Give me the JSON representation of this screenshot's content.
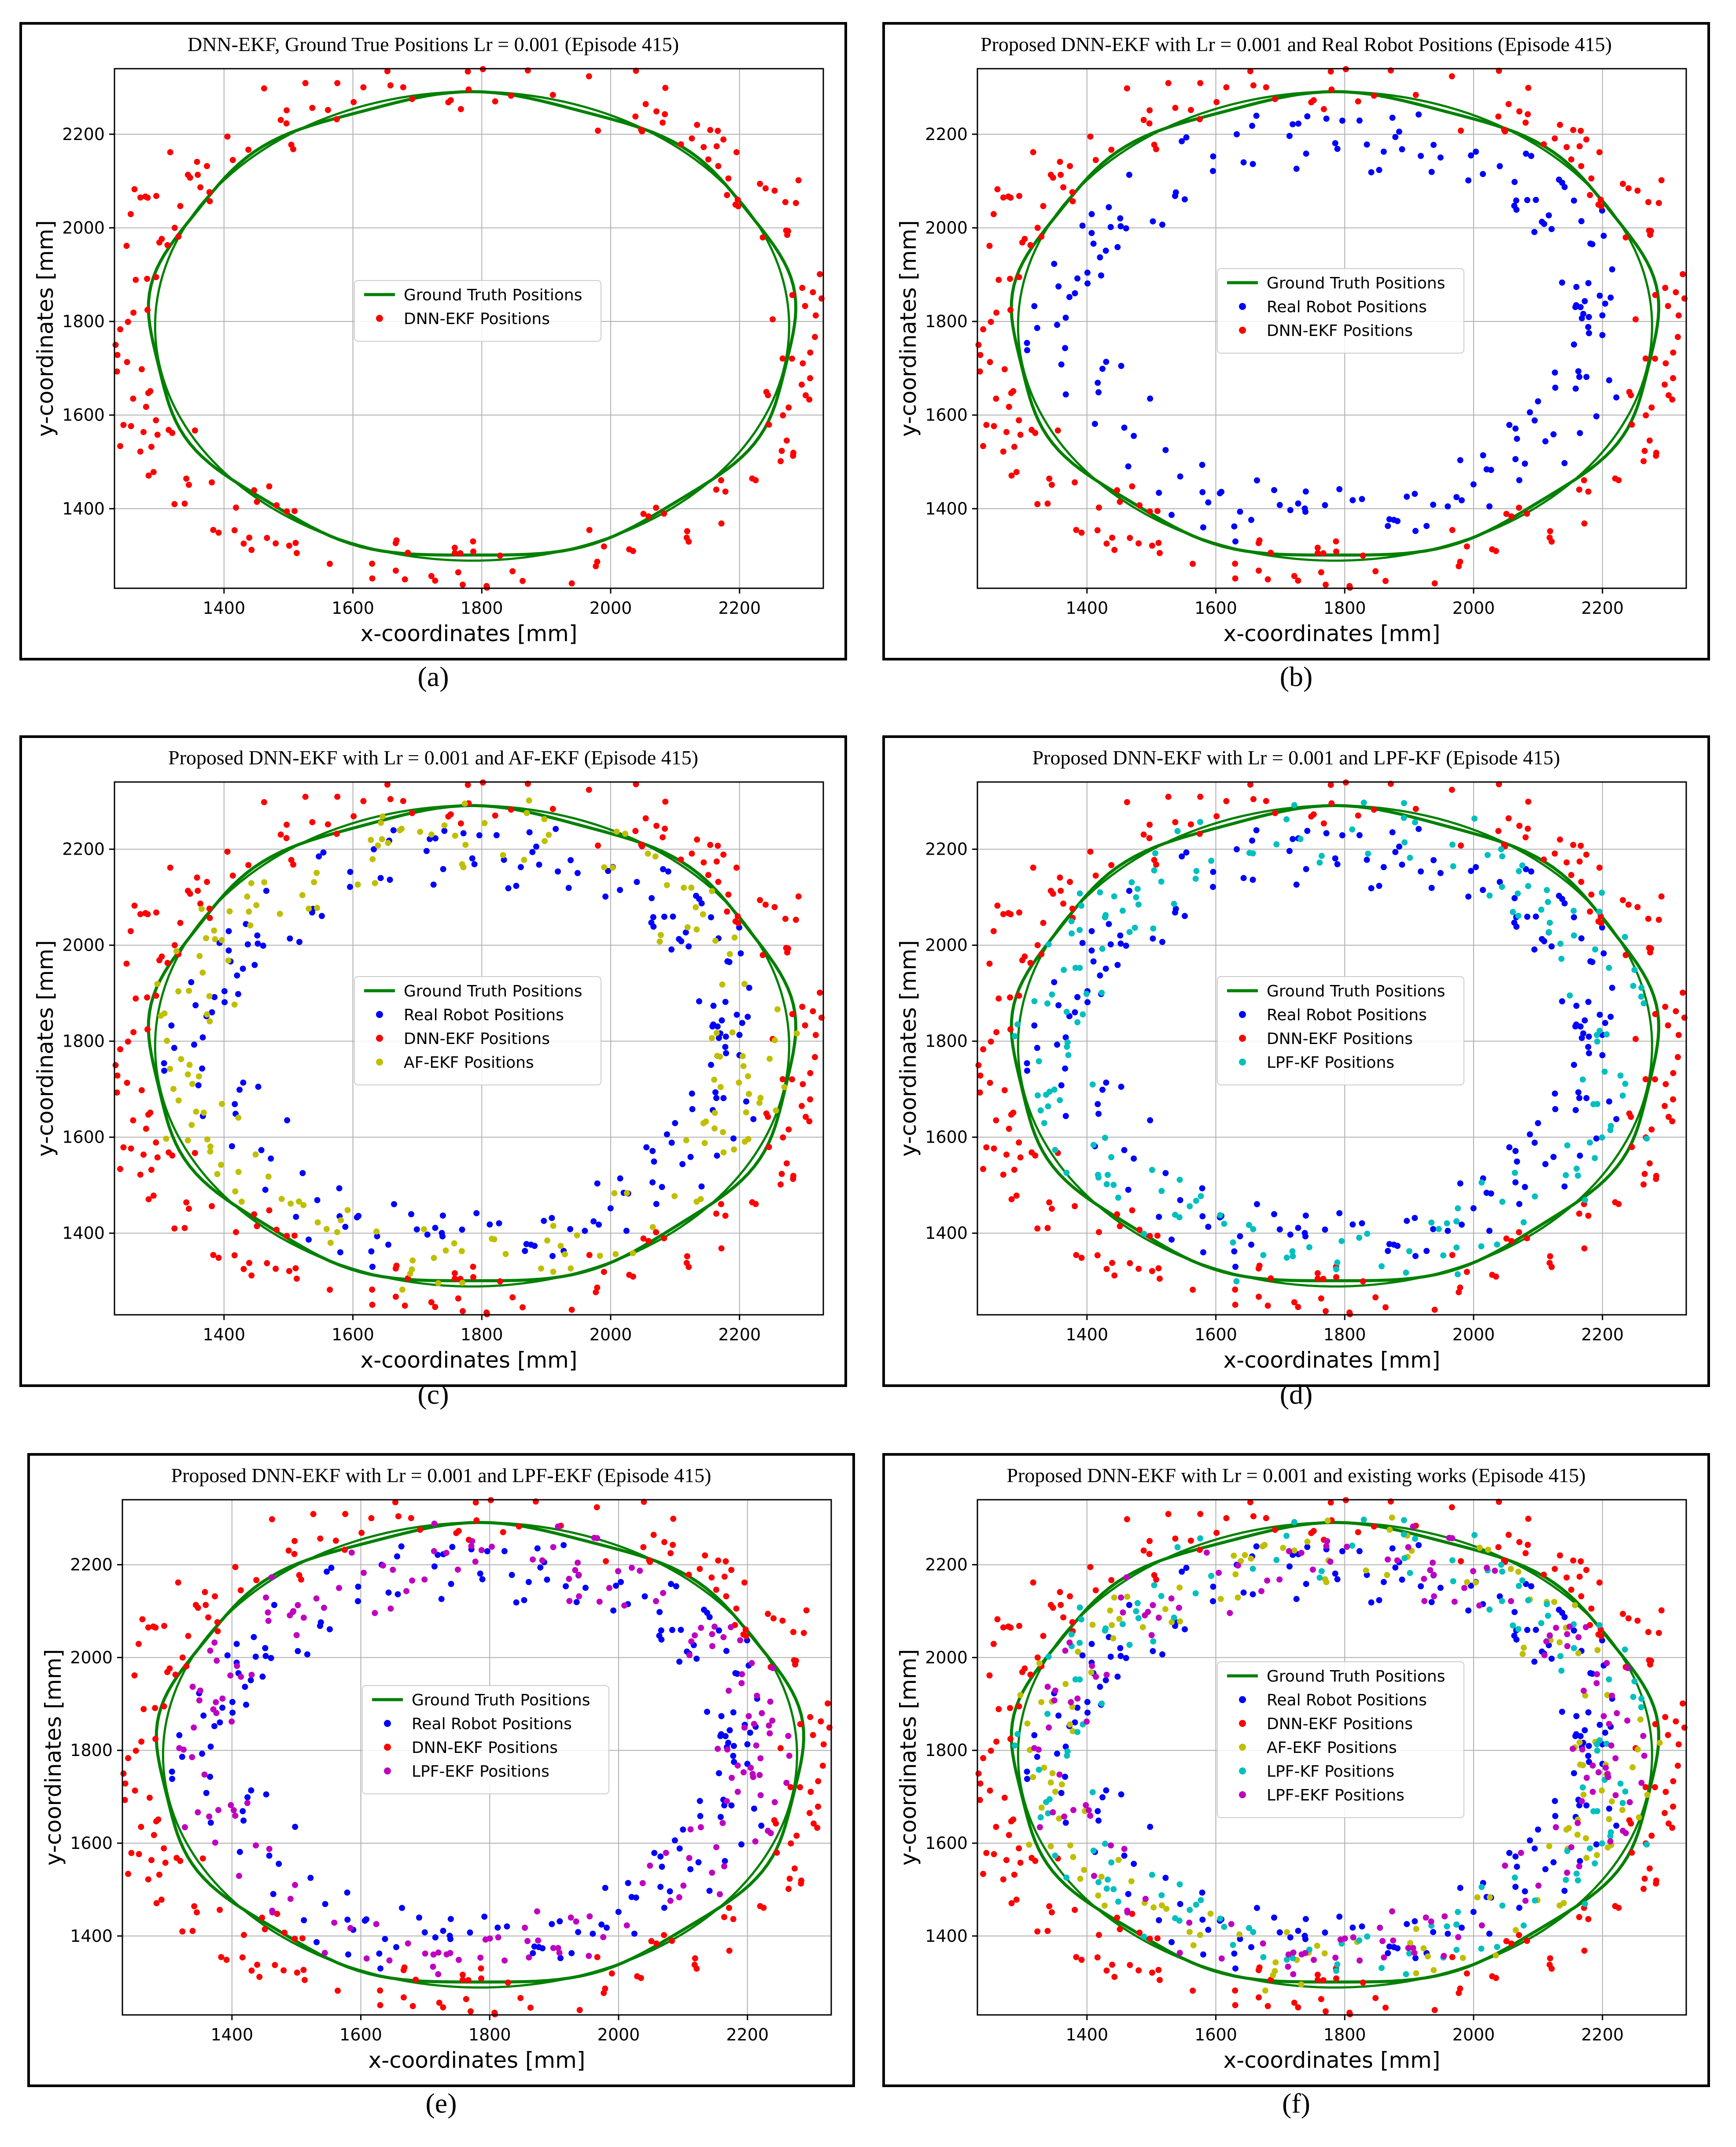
{
  "figure": {
    "labels": [
      "(a)",
      "(b)",
      "(c)",
      "(d)",
      "(e)",
      "(f)"
    ]
  },
  "colors": {
    "ground_truth": "#008000",
    "real_robot": "#0000ff",
    "dnn_ekf": "#ff0000",
    "af_ekf": "#bfbf00",
    "lpf_kf": "#00bfbf",
    "lpf_ekf": "#bf00bf"
  },
  "chart_data": [
    {
      "type": "scatter",
      "title": "DNN-EKF, Ground True Positions Lr = 0.001 (Episode 415)",
      "xlabel": "x-coordinates [mm]",
      "ylabel": "y-coordinates [mm]",
      "xlim": [
        1230,
        2330
      ],
      "ylim": [
        1230,
        2340
      ],
      "xticks": [
        1400,
        1600,
        1800,
        2000,
        2200
      ],
      "yticks": [
        1400,
        1600,
        1800,
        2000,
        2200
      ],
      "grid": true,
      "legend_position": "center",
      "series": [
        {
          "name": "Ground Truth Positions",
          "kind": "line",
          "color_key": "ground_truth",
          "ellipse": {
            "cx": 1785,
            "cy": 1790,
            "rx": 500,
            "ry": 495
          }
        },
        {
          "name": "DNN-EKF Positions",
          "kind": "scatter",
          "color_key": "dnn_ekf",
          "offset": 45,
          "seed": 11,
          "n": 230
        }
      ]
    },
    {
      "type": "scatter",
      "title": "Proposed DNN-EKF with Lr = 0.001 and Real Robot Positions (Episode 415)",
      "xlabel": "x-coordinates [mm]",
      "ylabel": "y-coordinates [mm]",
      "xlim": [
        1230,
        2330
      ],
      "ylim": [
        1230,
        2340
      ],
      "xticks": [
        1400,
        1600,
        1800,
        2000,
        2200
      ],
      "yticks": [
        1400,
        1600,
        1800,
        2000,
        2200
      ],
      "grid": true,
      "legend_position": "center",
      "series": [
        {
          "name": "Ground Truth Positions",
          "kind": "line",
          "color_key": "ground_truth",
          "ellipse": {
            "cx": 1785,
            "cy": 1790,
            "rx": 500,
            "ry": 495
          }
        },
        {
          "name": "Real Robot Positions",
          "kind": "scatter",
          "color_key": "real_robot",
          "offset": -90,
          "seed": 23,
          "n": 190
        },
        {
          "name": "DNN-EKF Positions",
          "kind": "scatter",
          "color_key": "dnn_ekf",
          "offset": 45,
          "seed": 11,
          "n": 230
        }
      ]
    },
    {
      "type": "scatter",
      "title": "Proposed DNN-EKF with Lr = 0.001 and AF-EKF (Episode 415)",
      "xlabel": "x-coordinates [mm]",
      "ylabel": "y-coordinates [mm]",
      "xlim": [
        1230,
        2330
      ],
      "ylim": [
        1230,
        2340
      ],
      "xticks": [
        1400,
        1600,
        1800,
        2000,
        2200
      ],
      "yticks": [
        1400,
        1600,
        1800,
        2000,
        2200
      ],
      "grid": true,
      "legend_position": "center",
      "series": [
        {
          "name": "Ground Truth Positions",
          "kind": "line",
          "color_key": "ground_truth",
          "ellipse": {
            "cx": 1785,
            "cy": 1790,
            "rx": 500,
            "ry": 495
          }
        },
        {
          "name": "Real Robot Positions",
          "kind": "scatter",
          "color_key": "real_robot",
          "offset": -90,
          "seed": 23,
          "n": 190
        },
        {
          "name": "DNN-EKF Positions",
          "kind": "scatter",
          "color_key": "dnn_ekf",
          "offset": 45,
          "seed": 11,
          "n": 230
        },
        {
          "name": "AF-EKF Positions",
          "kind": "scatter",
          "color_key": "af_ekf",
          "offset": -55,
          "seed": 37,
          "n": 180
        }
      ]
    },
    {
      "type": "scatter",
      "title": "Proposed DNN-EKF with Lr = 0.001 and LPF-KF (Episode 415)",
      "xlabel": "x-coordinates [mm]",
      "ylabel": "y-coordinates [mm]",
      "xlim": [
        1230,
        2330
      ],
      "ylim": [
        1230,
        2340
      ],
      "xticks": [
        1400,
        1600,
        1800,
        2000,
        2200
      ],
      "yticks": [
        1400,
        1600,
        1800,
        2000,
        2200
      ],
      "grid": true,
      "legend_position": "center",
      "series": [
        {
          "name": "Ground Truth Positions",
          "kind": "line",
          "color_key": "ground_truth",
          "ellipse": {
            "cx": 1785,
            "cy": 1790,
            "rx": 500,
            "ry": 495
          }
        },
        {
          "name": "Real Robot Positions",
          "kind": "scatter",
          "color_key": "real_robot",
          "offset": -90,
          "seed": 23,
          "n": 190
        },
        {
          "name": "DNN-EKF Positions",
          "kind": "scatter",
          "color_key": "dnn_ekf",
          "offset": 45,
          "seed": 11,
          "n": 230
        },
        {
          "name": "LPF-KF Positions",
          "kind": "scatter",
          "color_key": "lpf_kf",
          "offset": -50,
          "seed": 51,
          "n": 180
        }
      ]
    },
    {
      "type": "scatter",
      "title": "Proposed DNN-EKF with Lr = 0.001 and LPF-EKF (Episode 415)",
      "xlabel": "x-coordinates [mm]",
      "ylabel": "y-coordinates [mm]",
      "xlim": [
        1230,
        2330
      ],
      "ylim": [
        1230,
        2340
      ],
      "xticks": [
        1400,
        1600,
        1800,
        2000,
        2200
      ],
      "yticks": [
        1400,
        1600,
        1800,
        2000,
        2200
      ],
      "grid": true,
      "legend_position": "center",
      "series": [
        {
          "name": "Ground Truth Positions",
          "kind": "line",
          "color_key": "ground_truth",
          "ellipse": {
            "cx": 1785,
            "cy": 1790,
            "rx": 500,
            "ry": 495
          }
        },
        {
          "name": "Real Robot Positions",
          "kind": "scatter",
          "color_key": "real_robot",
          "offset": -90,
          "seed": 23,
          "n": 190
        },
        {
          "name": "DNN-EKF Positions",
          "kind": "scatter",
          "color_key": "dnn_ekf",
          "offset": 45,
          "seed": 11,
          "n": 230
        },
        {
          "name": "LPF-EKF Positions",
          "kind": "scatter",
          "color_key": "lpf_ekf",
          "offset": -70,
          "seed": 67,
          "n": 180
        }
      ]
    },
    {
      "type": "scatter",
      "title": "Proposed DNN-EKF with Lr = 0.001 and existing works (Episode 415)",
      "xlabel": "x-coordinates [mm]",
      "ylabel": "y-coordinates [mm]",
      "xlim": [
        1230,
        2330
      ],
      "ylim": [
        1230,
        2340
      ],
      "xticks": [
        1400,
        1600,
        1800,
        2000,
        2200
      ],
      "yticks": [
        1400,
        1600,
        1800,
        2000,
        2200
      ],
      "grid": true,
      "legend_position": "center",
      "series": [
        {
          "name": "Ground Truth Positions",
          "kind": "line",
          "color_key": "ground_truth",
          "ellipse": {
            "cx": 1785,
            "cy": 1790,
            "rx": 500,
            "ry": 495
          }
        },
        {
          "name": "Real Robot Positions",
          "kind": "scatter",
          "color_key": "real_robot",
          "offset": -90,
          "seed": 23,
          "n": 190
        },
        {
          "name": "DNN-EKF Positions",
          "kind": "scatter",
          "color_key": "dnn_ekf",
          "offset": 45,
          "seed": 11,
          "n": 230
        },
        {
          "name": "AF-EKF Positions",
          "kind": "scatter",
          "color_key": "af_ekf",
          "offset": -55,
          "seed": 37,
          "n": 150
        },
        {
          "name": "LPF-KF Positions",
          "kind": "scatter",
          "color_key": "lpf_kf",
          "offset": -50,
          "seed": 51,
          "n": 150
        },
        {
          "name": "LPF-EKF Positions",
          "kind": "scatter",
          "color_key": "lpf_ekf",
          "offset": -70,
          "seed": 67,
          "n": 150
        }
      ]
    }
  ]
}
